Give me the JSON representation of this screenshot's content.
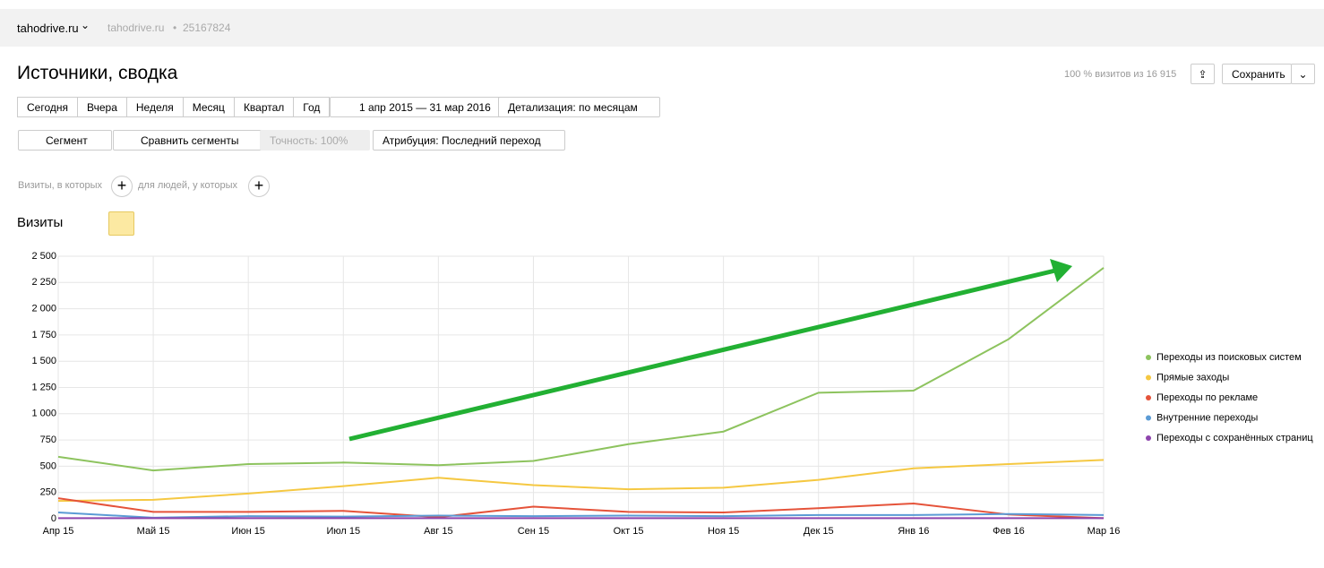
{
  "header": {
    "site": "tahodrive.ru",
    "site_secondary": "tahodrive.ru",
    "counter_id": "25167824"
  },
  "title": "Источники, сводка",
  "sample": "100 % визитов из 16 915",
  "save": "Сохранить",
  "periods": [
    "Сегодня",
    "Вчера",
    "Неделя",
    "Месяц",
    "Квартал",
    "Год"
  ],
  "date_range": "1 апр 2015 — 31 мар 2016",
  "detail": "Детализация: по месяцам",
  "segment": "Сегмент",
  "compare": "Сравнить сегменты",
  "accuracy": "Точность: 100%",
  "attribution": "Атрибуция: Последний переход",
  "filter_visits": "Визиты, в которых",
  "filter_people": "для людей, у которых",
  "metric": "Визиты",
  "chart_data": {
    "type": "line",
    "categories": [
      "Апр 15",
      "Май 15",
      "Июн 15",
      "Июл 15",
      "Авг 15",
      "Сен 15",
      "Окт 15",
      "Ноя 15",
      "Дек 15",
      "Янв 16",
      "Фев 16",
      "Мар 16"
    ],
    "series": [
      {
        "name": "Переходы из поисковых систем",
        "color": "#8dc35e",
        "values": [
          590,
          460,
          520,
          535,
          510,
          550,
          710,
          830,
          1200,
          1220,
          1710,
          2390
        ]
      },
      {
        "name": "Прямые заходы",
        "color": "#f5c842",
        "values": [
          170,
          180,
          240,
          310,
          390,
          320,
          280,
          295,
          370,
          480,
          520,
          560
        ]
      },
      {
        "name": "Переходы по рекламе",
        "color": "#e5533a",
        "values": [
          195,
          65,
          65,
          75,
          15,
          115,
          65,
          60,
          100,
          145,
          40,
          5
        ]
      },
      {
        "name": "Внутренние переходы",
        "color": "#5b9bd5",
        "values": [
          60,
          10,
          25,
          20,
          30,
          25,
          30,
          25,
          35,
          35,
          45,
          35
        ]
      },
      {
        "name": "Переходы с сохранённых страниц",
        "color": "#8e44ad",
        "values": [
          5,
          5,
          5,
          5,
          5,
          5,
          5,
          5,
          5,
          5,
          5,
          5
        ]
      }
    ],
    "ylim": [
      0,
      2500
    ],
    "yticks": [
      0,
      250,
      500,
      750,
      {
        "value": 1000,
        "label": "1 000"
      },
      {
        "value": 1250,
        "label": "1 250"
      },
      {
        "value": 1500,
        "label": "1 500"
      },
      {
        "value": 1750,
        "label": "1 750"
      },
      {
        "value": 2000,
        "label": "2 000"
      },
      {
        "value": 2250,
        "label": "2 250"
      },
      {
        "value": 2500,
        "label": "2 500"
      }
    ],
    "grid": true,
    "legend": "right"
  }
}
